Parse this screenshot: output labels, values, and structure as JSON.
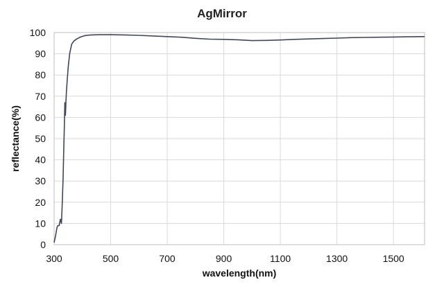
{
  "chart_data": {
    "type": "line",
    "title": "AgMirror",
    "xlabel": "wavelength(nm)",
    "ylabel": "reflectance(%)",
    "xlim": [
      300,
      1610
    ],
    "ylim": [
      0,
      100
    ],
    "x_ticks": [
      300,
      500,
      700,
      900,
      1100,
      1300,
      1500
    ],
    "y_ticks": [
      0,
      10,
      20,
      30,
      40,
      50,
      60,
      70,
      80,
      90,
      100
    ],
    "grid": true,
    "legend": "none",
    "series_color": "#3f4656",
    "series": [
      {
        "x": [
          300,
          305,
          310,
          313,
          318,
          322,
          326,
          329,
          332,
          334,
          336,
          338,
          339,
          340,
          341,
          342,
          344,
          347,
          350,
          355,
          362,
          370,
          380,
          395,
          410,
          430,
          460,
          500,
          550,
          600,
          650,
          700,
          750,
          800,
          850,
          900,
          950,
          1000,
          1050,
          1100,
          1150,
          1200,
          1250,
          1300,
          1350,
          1400,
          1450,
          1500,
          1550,
          1610
        ],
        "y": [
          1,
          4,
          8,
          9,
          9,
          12,
          10,
          20,
          32,
          45,
          55,
          67,
          63,
          61,
          64,
          68,
          73,
          79,
          84,
          90,
          94.5,
          96,
          97,
          98,
          98.6,
          98.9,
          99,
          99,
          98.9,
          98.7,
          98.4,
          98.1,
          97.8,
          97.3,
          96.9,
          96.8,
          96.6,
          96.2,
          96.3,
          96.5,
          96.8,
          97,
          97.2,
          97.4,
          97.6,
          97.7,
          97.8,
          97.9,
          98,
          98.1
        ]
      }
    ]
  }
}
